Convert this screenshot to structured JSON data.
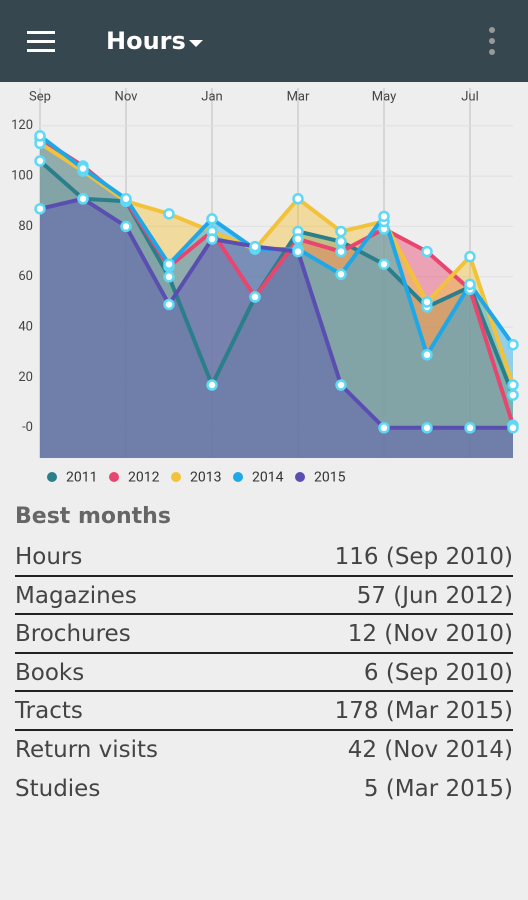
{
  "app_bar": {
    "title": "Hours"
  },
  "chart_data": {
    "type": "area",
    "categories": [
      "Sep",
      null,
      "Nov",
      null,
      "Jan",
      null,
      "Mar",
      null,
      "May",
      null,
      "Jul",
      null
    ],
    "series": [
      {
        "name": "2011",
        "color": "#2a7f8a",
        "values": [
          106,
          91,
          90,
          60,
          17,
          52,
          78,
          74,
          65,
          48,
          56,
          13
        ]
      },
      {
        "name": "2012",
        "color": "#e8456f",
        "values": [
          115,
          104,
          90,
          64,
          78,
          52,
          75,
          70,
          79,
          70,
          55,
          1
        ]
      },
      {
        "name": "2013",
        "color": "#f2c23a",
        "values": [
          113,
          102,
          90,
          85,
          78,
          71,
          91,
          78,
          82,
          50,
          68,
          17
        ]
      },
      {
        "name": "2014",
        "color": "#1ea8e8",
        "values": [
          116,
          103,
          91,
          65,
          83,
          71,
          71,
          61,
          84,
          29,
          57,
          33
        ]
      },
      {
        "name": "2015",
        "color": "#5a4fb0",
        "values": [
          87,
          91,
          80,
          49,
          75,
          72,
          70,
          17,
          0,
          0,
          0,
          0
        ]
      }
    ],
    "ylim": [
      -12,
      135
    ],
    "yticks": [
      {
        "value": 0,
        "label": "-0"
      },
      20,
      40,
      60,
      80,
      100,
      120
    ]
  },
  "best_months": {
    "title": "Best months",
    "rows": [
      [
        "Hours",
        "116 (Sep 2010)"
      ],
      [
        "Magazines",
        "57 (Jun 2012)"
      ],
      [
        "Brochures",
        "12 (Nov 2010)"
      ],
      [
        "Books",
        "6 (Sep 2010)"
      ],
      [
        "Tracts",
        "178 (Mar 2015)"
      ],
      [
        "Return visits",
        "42 (Nov 2014)"
      ],
      [
        "Studies",
        "5 (Mar 2015)"
      ]
    ]
  }
}
